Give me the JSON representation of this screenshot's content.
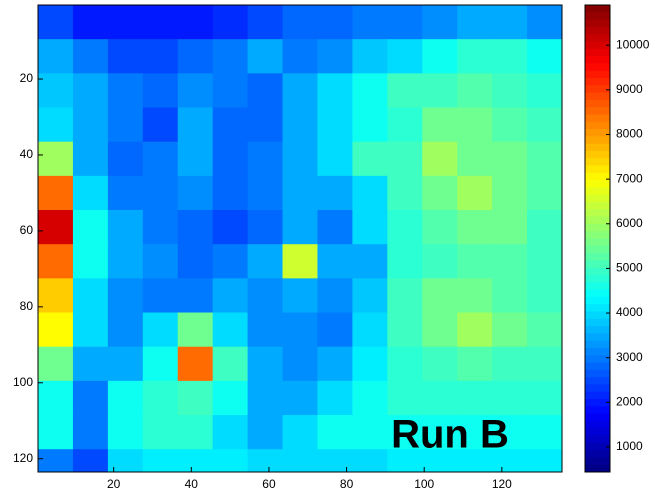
{
  "chart_data": {
    "type": "heatmap",
    "colormap": "jet",
    "annotation": "Run B",
    "x": [
      5,
      14,
      23,
      32,
      41,
      50,
      59,
      68,
      77,
      86,
      95,
      104,
      113,
      122,
      131
    ],
    "y": [
      5,
      14,
      23,
      32,
      41,
      50,
      59,
      68,
      77,
      86,
      95,
      104,
      113,
      122
    ],
    "values": [
      [
        2500,
        2000,
        2000,
        2000,
        2000,
        2200,
        2500,
        2800,
        2800,
        3000,
        3000,
        3200,
        3500,
        3500,
        3200
      ],
      [
        3500,
        3000,
        2500,
        2500,
        2800,
        3000,
        3500,
        3000,
        3200,
        3800,
        4000,
        4500,
        4800,
        4800,
        4500
      ],
      [
        3800,
        3500,
        3000,
        2800,
        3200,
        3000,
        2800,
        3500,
        4000,
        4500,
        5000,
        5000,
        5200,
        5000,
        4800
      ],
      [
        4000,
        3500,
        3000,
        2500,
        3500,
        2800,
        2800,
        3500,
        4000,
        4500,
        4800,
        5500,
        5500,
        5200,
        5000
      ],
      [
        6000,
        3500,
        2800,
        3000,
        3500,
        2800,
        3000,
        3500,
        4000,
        5000,
        5000,
        6000,
        5500,
        5500,
        5200
      ],
      [
        8500,
        4000,
        3000,
        3000,
        3200,
        2800,
        3000,
        3500,
        3500,
        4000,
        5000,
        5500,
        6000,
        5500,
        5200
      ],
      [
        10000,
        4500,
        3500,
        3000,
        2800,
        2500,
        2800,
        3500,
        3000,
        4000,
        4800,
        5200,
        5500,
        5500,
        5000
      ],
      [
        8500,
        4500,
        3500,
        3200,
        2800,
        3000,
        3500,
        6500,
        3500,
        3500,
        4800,
        5000,
        5200,
        5200,
        5000
      ],
      [
        7500,
        4000,
        3200,
        3000,
        3000,
        3500,
        3200,
        3500,
        3200,
        3800,
        5000,
        5500,
        5500,
        5200,
        5000
      ],
      [
        7000,
        4000,
        3200,
        4000,
        5500,
        4000,
        3200,
        3200,
        3000,
        4000,
        5000,
        5500,
        6000,
        5500,
        5200
      ],
      [
        5500,
        3500,
        3500,
        4500,
        8500,
        5000,
        3500,
        3200,
        3500,
        4200,
        4800,
        5000,
        5200,
        5000,
        5000
      ],
      [
        4500,
        3000,
        4500,
        4800,
        5000,
        4500,
        3500,
        3500,
        4000,
        4500,
        4800,
        4800,
        4800,
        4800,
        4800
      ],
      [
        4500,
        3000,
        4500,
        4800,
        4800,
        4000,
        3500,
        4000,
        4500,
        4500,
        4500,
        4500,
        4500,
        4500,
        4500
      ],
      [
        3000,
        2500,
        4000,
        4200,
        4200,
        4200,
        4000,
        4000,
        4000,
        4000,
        4200,
        4200,
        4200,
        4200,
        4200
      ]
    ],
    "xlim": [
      0.5,
      135.5
    ],
    "ylim": [
      0.5,
      123.5
    ],
    "xticks": [
      20,
      40,
      60,
      80,
      100,
      120
    ],
    "yticks": [
      20,
      40,
      60,
      80,
      100,
      120
    ],
    "clim": [
      440,
      10900
    ],
    "cticks": [
      1000,
      2000,
      3000,
      4000,
      5000,
      6000,
      7000,
      8000,
      9000,
      10000
    ]
  }
}
